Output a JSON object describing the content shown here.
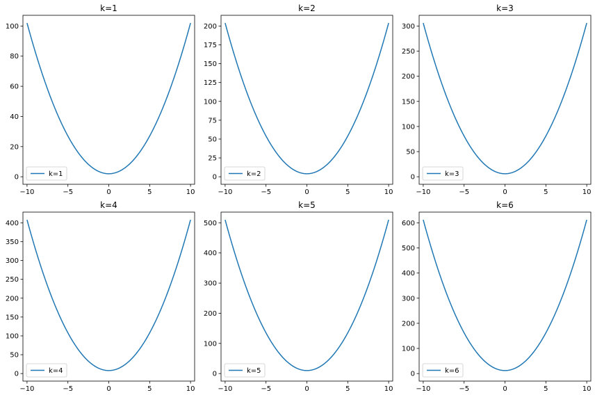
{
  "chart_data": [
    {
      "type": "line",
      "title": "k=1",
      "xlim": [
        -10.5,
        10.5
      ],
      "ylim": [
        -5.0,
        107.1
      ],
      "xticks": [
        -10,
        -5,
        0,
        5,
        10
      ],
      "xtick_labels": [
        "−10",
        "−5",
        "0",
        "5",
        "10"
      ],
      "yticks": [
        0,
        20,
        40,
        60,
        80,
        100
      ],
      "ytick_labels": [
        "0",
        "20",
        "40",
        "60",
        "80",
        "100"
      ],
      "legend": "lower-left",
      "grid": false,
      "x_range": [
        -10,
        10
      ],
      "series": [
        {
          "name": "k=1",
          "color": "#1f77b4",
          "equation": "k*(x^2 + 2)",
          "k": 1
        }
      ]
    },
    {
      "type": "line",
      "title": "k=2",
      "xlim": [
        -10.5,
        10.5
      ],
      "ylim": [
        -10.0,
        214.2
      ],
      "xticks": [
        -10,
        -5,
        0,
        5,
        10
      ],
      "xtick_labels": [
        "−10",
        "−5",
        "0",
        "5",
        "10"
      ],
      "yticks": [
        0,
        25,
        50,
        75,
        100,
        125,
        150,
        175,
        200
      ],
      "ytick_labels": [
        "0",
        "25",
        "50",
        "75",
        "100",
        "125",
        "150",
        "175",
        "200"
      ],
      "legend": "lower-left",
      "grid": false,
      "x_range": [
        -10,
        10
      ],
      "series": [
        {
          "name": "k=2",
          "color": "#1f77b4",
          "equation": "k*(x^2 + 2)",
          "k": 2
        }
      ]
    },
    {
      "type": "line",
      "title": "k=3",
      "xlim": [
        -10.5,
        10.5
      ],
      "ylim": [
        -15.0,
        321.3
      ],
      "xticks": [
        -10,
        -5,
        0,
        5,
        10
      ],
      "xtick_labels": [
        "−10",
        "−5",
        "0",
        "5",
        "10"
      ],
      "yticks": [
        0,
        50,
        100,
        150,
        200,
        250,
        300
      ],
      "ytick_labels": [
        "0",
        "50",
        "100",
        "150",
        "200",
        "250",
        "300"
      ],
      "legend": "lower-left",
      "grid": false,
      "x_range": [
        -10,
        10
      ],
      "series": [
        {
          "name": "k=3",
          "color": "#1f77b4",
          "equation": "k*(x^2 + 2)",
          "k": 3
        }
      ]
    },
    {
      "type": "line",
      "title": "k=4",
      "xlim": [
        -10.5,
        10.5
      ],
      "ylim": [
        -20.0,
        428.4
      ],
      "xticks": [
        -10,
        -5,
        0,
        5,
        10
      ],
      "xtick_labels": [
        "−10",
        "−5",
        "0",
        "5",
        "10"
      ],
      "yticks": [
        0,
        50,
        100,
        150,
        200,
        250,
        300,
        350,
        400
      ],
      "ytick_labels": [
        "0",
        "50",
        "100",
        "150",
        "200",
        "250",
        "300",
        "350",
        "400"
      ],
      "legend": "lower-left",
      "grid": false,
      "x_range": [
        -10,
        10
      ],
      "series": [
        {
          "name": "k=4",
          "color": "#1f77b4",
          "equation": "k*(x^2 + 2)",
          "k": 4
        }
      ]
    },
    {
      "type": "line",
      "title": "k=5",
      "xlim": [
        -10.5,
        10.5
      ],
      "ylim": [
        -25.0,
        535.5
      ],
      "xticks": [
        -10,
        -5,
        0,
        5,
        10
      ],
      "xtick_labels": [
        "−10",
        "−5",
        "0",
        "5",
        "10"
      ],
      "yticks": [
        0,
        100,
        200,
        300,
        400,
        500
      ],
      "ytick_labels": [
        "0",
        "100",
        "200",
        "300",
        "400",
        "500"
      ],
      "legend": "lower-left",
      "grid": false,
      "x_range": [
        -10,
        10
      ],
      "series": [
        {
          "name": "k=5",
          "color": "#1f77b4",
          "equation": "k*(x^2 + 2)",
          "k": 5
        }
      ]
    },
    {
      "type": "line",
      "title": "k=6",
      "xlim": [
        -10.5,
        10.5
      ],
      "ylim": [
        -30.0,
        642.6
      ],
      "xticks": [
        -10,
        -5,
        0,
        5,
        10
      ],
      "xtick_labels": [
        "−10",
        "−5",
        "0",
        "5",
        "10"
      ],
      "yticks": [
        0,
        100,
        200,
        300,
        400,
        500,
        600
      ],
      "ytick_labels": [
        "0",
        "100",
        "200",
        "300",
        "400",
        "500",
        "600"
      ],
      "legend": "lower-left",
      "grid": false,
      "x_range": [
        -10,
        10
      ],
      "series": [
        {
          "name": "k=6",
          "color": "#1f77b4",
          "equation": "k*(x^2 + 2)",
          "k": 6
        }
      ]
    }
  ]
}
